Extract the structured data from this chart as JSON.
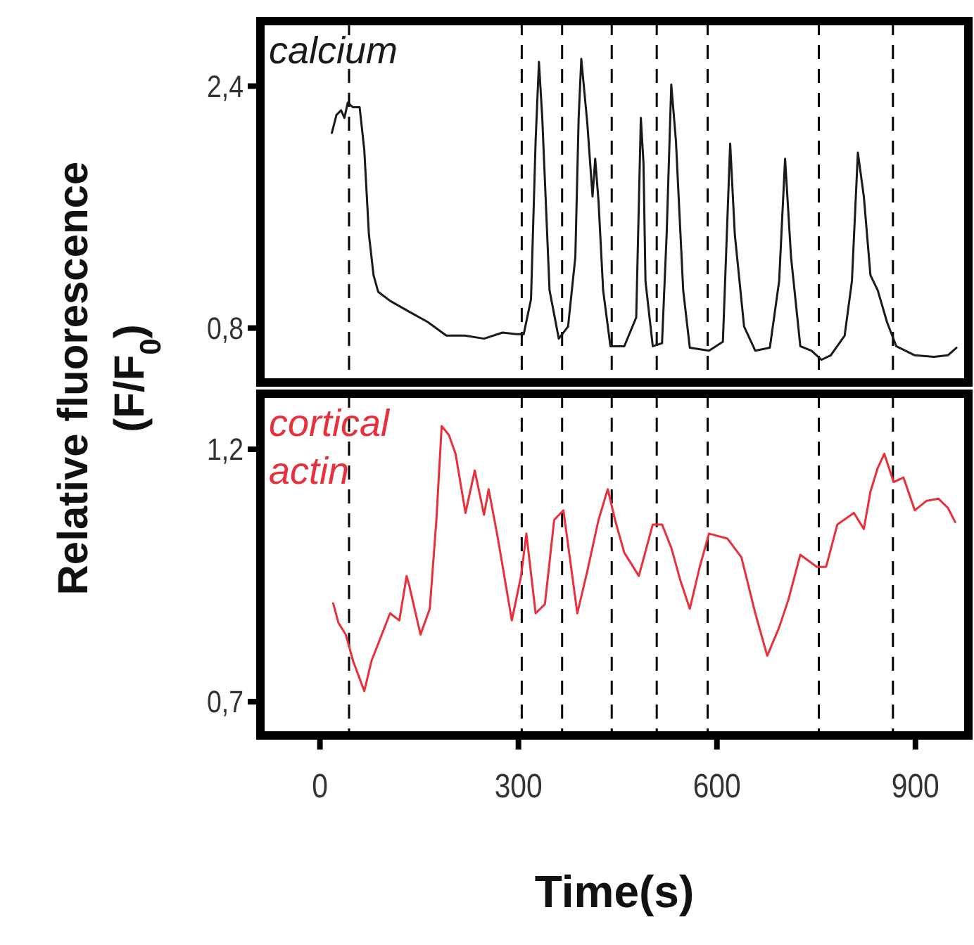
{
  "chart_data": [
    {
      "type": "line",
      "ylabel": "Relative fluorescence (F/F$_{0}$)",
      "xlim": [
        -90,
        980
      ],
      "ylim": [
        0.44,
        2.83
      ],
      "yticks": [
        {
          "value": 2.4,
          "label": "2,4"
        },
        {
          "value": 0.8,
          "label": "0,8"
        }
      ],
      "tick_labels": "y",
      "grid": false,
      "line_style": "solid",
      "ref_lines": [
        {
          "axis": "x",
          "value": 44,
          "line_style": "dashed",
          "color": "#000000"
        },
        {
          "axis": "x",
          "value": 305,
          "line_style": "dashed",
          "color": "#000000"
        },
        {
          "axis": "x",
          "value": 366,
          "line_style": "dashed",
          "color": "#000000"
        },
        {
          "axis": "x",
          "value": 441,
          "line_style": "dashed",
          "color": "#000000"
        },
        {
          "axis": "x",
          "value": 509,
          "line_style": "dashed",
          "color": "#000000"
        },
        {
          "axis": "x",
          "value": 586,
          "line_style": "dashed",
          "color": "#000000"
        },
        {
          "axis": "x",
          "value": 754,
          "line_style": "dashed",
          "color": "#000000"
        },
        {
          "axis": "x",
          "value": 866,
          "line_style": "dashed",
          "color": "#000000"
        }
      ],
      "series": [
        {
          "name": "calcium",
          "color": "#1a1a1a",
          "x": [
            18,
            25,
            32,
            37,
            42,
            50,
            60,
            67,
            74,
            81,
            88,
            106,
            134,
            163,
            191,
            219,
            248,
            276,
            297,
            308,
            319,
            326,
            331,
            336,
            347,
            361,
            375,
            386,
            391,
            395,
            404,
            412,
            416,
            421,
            428,
            439,
            460,
            478,
            485,
            489,
            492,
            503,
            517,
            524,
            531,
            538,
            549,
            559,
            588,
            609,
            620,
            627,
            641,
            658,
            680,
            694,
            703,
            712,
            726,
            743,
            758,
            772,
            793,
            804,
            813,
            822,
            832,
            843,
            857,
            871,
            899,
            928,
            949,
            962
          ],
          "values": [
            2.09,
            2.21,
            2.24,
            2.19,
            2.29,
            2.26,
            2.26,
            1.98,
            1.42,
            1.15,
            1.04,
            0.98,
            0.91,
            0.84,
            0.75,
            0.75,
            0.73,
            0.77,
            0.76,
            0.76,
            0.99,
            2.04,
            2.56,
            2.19,
            1.05,
            0.73,
            0.81,
            1.27,
            2.19,
            2.58,
            2.16,
            1.67,
            1.92,
            1.64,
            1.05,
            0.68,
            0.68,
            0.87,
            2.19,
            1.89,
            1.11,
            0.68,
            0.7,
            1.42,
            2.41,
            2.04,
            1.05,
            0.67,
            0.65,
            0.71,
            2.02,
            1.42,
            0.81,
            0.65,
            0.67,
            1.11,
            1.92,
            1.27,
            0.68,
            0.65,
            0.59,
            0.62,
            0.75,
            1.11,
            1.96,
            1.67,
            1.15,
            1.05,
            0.84,
            0.68,
            0.62,
            0.61,
            0.62,
            0.67
          ]
        }
      ]
    },
    {
      "type": "line",
      "xlabel": "Time(s)",
      "xlim": [
        -90,
        980
      ],
      "xticks": [
        0,
        300,
        600,
        900
      ],
      "ylim": [
        0.633,
        1.31
      ],
      "yticks": [
        {
          "value": 1.2,
          "label": "1,2"
        },
        {
          "value": 0.7,
          "label": "0,7"
        }
      ],
      "grid": false,
      "line_style": "solid",
      "ref_lines": [
        {
          "axis": "x",
          "value": 44,
          "line_style": "dashed",
          "color": "#000000"
        },
        {
          "axis": "x",
          "value": 305,
          "line_style": "dashed",
          "color": "#000000"
        },
        {
          "axis": "x",
          "value": 366,
          "line_style": "dashed",
          "color": "#000000"
        },
        {
          "axis": "x",
          "value": 441,
          "line_style": "dashed",
          "color": "#000000"
        },
        {
          "axis": "x",
          "value": 509,
          "line_style": "dashed",
          "color": "#000000"
        },
        {
          "axis": "x",
          "value": 586,
          "line_style": "dashed",
          "color": "#000000"
        },
        {
          "axis": "x",
          "value": 754,
          "line_style": "dashed",
          "color": "#000000"
        },
        {
          "axis": "x",
          "value": 866,
          "line_style": "dashed",
          "color": "#000000"
        }
      ],
      "series": [
        {
          "name": "cortical actin",
          "color": "#e8303a",
          "x": [
            20,
            28,
            39,
            50,
            67,
            78,
            92,
            106,
            120,
            131,
            135,
            152,
            166,
            176,
            184,
            195,
            205,
            220,
            234,
            248,
            255,
            269,
            290,
            304,
            312,
            326,
            340,
            354,
            368,
            389,
            404,
            421,
            435,
            446,
            460,
            482,
            503,
            517,
            531,
            545,
            559,
            574,
            588,
            616,
            637,
            658,
            676,
            694,
            708,
            726,
            751,
            765,
            782,
            807,
            822,
            832,
            843,
            853,
            867,
            882,
            899,
            917,
            935,
            949,
            960
          ],
          "values": [
            0.895,
            0.856,
            0.833,
            0.781,
            0.721,
            0.781,
            0.828,
            0.875,
            0.861,
            0.949,
            0.93,
            0.833,
            0.884,
            1.06,
            1.246,
            1.228,
            1.191,
            1.074,
            1.158,
            1.07,
            1.121,
            1.023,
            0.861,
            0.949,
            1.033,
            0.875,
            0.893,
            1.06,
            1.079,
            0.875,
            0.958,
            1.06,
            1.121,
            1.06,
            0.995,
            0.949,
            1.051,
            1.051,
            1.005,
            0.939,
            0.884,
            0.967,
            1.033,
            1.023,
            0.986,
            0.875,
            0.791,
            0.847,
            0.902,
            0.991,
            0.967,
            0.967,
            1.051,
            1.074,
            1.042,
            1.116,
            1.163,
            1.191,
            1.135,
            1.144,
            1.079,
            1.098,
            1.102,
            1.084,
            1.056
          ]
        }
      ]
    }
  ]
}
